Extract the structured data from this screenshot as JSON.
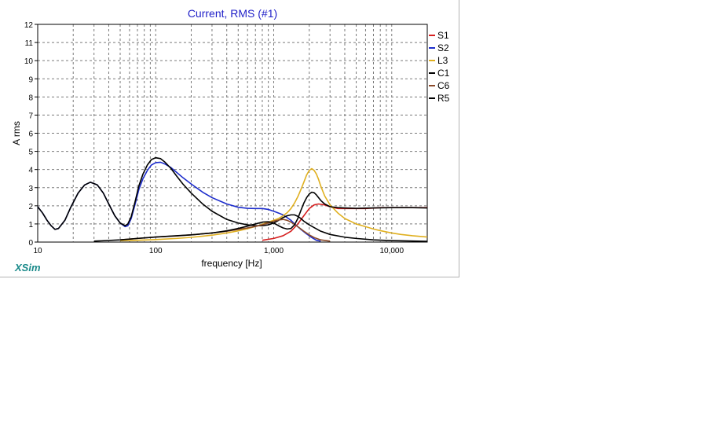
{
  "app": {
    "brand": "XSim"
  },
  "colors": {
    "title": "#1f1fc8",
    "brand": "#1a8a8a",
    "grid": "#7a7a7a"
  },
  "chart_data": {
    "type": "line",
    "title": "Current, RMS (#1)",
    "xlabel": "frequency [Hz]",
    "ylabel": "A rms",
    "xscale": "log",
    "xlim": [
      10,
      20000
    ],
    "ylim": [
      0,
      12
    ],
    "grid": true,
    "legend_position": "right",
    "x_ticks": [
      {
        "value": 10,
        "label": "10"
      },
      {
        "value": 100,
        "label": "100"
      },
      {
        "value": 1000,
        "label": "1,000"
      },
      {
        "value": 10000,
        "label": "10,000"
      }
    ],
    "y_ticks": [
      0,
      1,
      2,
      3,
      4,
      5,
      6,
      7,
      8,
      9,
      10,
      11,
      12
    ],
    "series": [
      {
        "name": "S1",
        "color": "#d62020",
        "x": [
          800,
          1000,
          1200,
          1400,
          1600,
          1800,
          2000,
          2200,
          2400,
          2700,
          3000,
          3500,
          4000,
          5000,
          6000,
          8000,
          10000,
          15000,
          20000
        ],
        "y": [
          0.1,
          0.2,
          0.35,
          0.6,
          1.0,
          1.45,
          1.85,
          2.05,
          2.1,
          2.05,
          1.95,
          1.85,
          1.85,
          1.85,
          1.85,
          1.9,
          1.9,
          1.9,
          1.9
        ]
      },
      {
        "name": "S2",
        "color": "#1c2ccc",
        "x": [
          10,
          11,
          12,
          13,
          14,
          15,
          17,
          19,
          22,
          25,
          28,
          32,
          36,
          40,
          45,
          50,
          55,
          58,
          62,
          67,
          72,
          78,
          85,
          92,
          100,
          110,
          120,
          135,
          150,
          170,
          200,
          250,
          300,
          400,
          500,
          600,
          700,
          800,
          900,
          1000,
          1100,
          1200,
          1300,
          1400,
          1500,
          1700,
          1900,
          2100,
          2300,
          2500
        ],
        "y": [
          1.95,
          1.6,
          1.2,
          0.9,
          0.7,
          0.75,
          1.2,
          1.9,
          2.7,
          3.15,
          3.3,
          3.15,
          2.7,
          2.1,
          1.45,
          1.05,
          0.85,
          0.9,
          1.3,
          2.1,
          2.9,
          3.5,
          3.95,
          4.25,
          4.38,
          4.4,
          4.3,
          4.1,
          3.85,
          3.55,
          3.2,
          2.75,
          2.45,
          2.1,
          1.92,
          1.86,
          1.85,
          1.85,
          1.8,
          1.7,
          1.6,
          1.5,
          1.35,
          1.2,
          1.0,
          0.7,
          0.45,
          0.25,
          0.1,
          0.05
        ]
      },
      {
        "name": "L3",
        "color": "#e0b020",
        "x": [
          50,
          70,
          100,
          150,
          200,
          300,
          400,
          500,
          600,
          700,
          800,
          900,
          1000,
          1100,
          1200,
          1300,
          1400,
          1500,
          1600,
          1700,
          1800,
          1900,
          2000,
          2100,
          2200,
          2300,
          2400,
          2500,
          2700,
          3000,
          3500,
          4000,
          5000,
          6000,
          7000,
          8000,
          10000,
          12000,
          15000,
          20000
        ],
        "y": [
          0.08,
          0.1,
          0.14,
          0.2,
          0.26,
          0.38,
          0.5,
          0.62,
          0.74,
          0.86,
          0.98,
          1.1,
          1.2,
          1.3,
          1.45,
          1.62,
          1.85,
          2.15,
          2.5,
          2.9,
          3.3,
          3.7,
          3.95,
          4.05,
          3.95,
          3.75,
          3.45,
          3.1,
          2.55,
          2.05,
          1.6,
          1.3,
          1.0,
          0.85,
          0.72,
          0.63,
          0.5,
          0.42,
          0.35,
          0.28
        ]
      },
      {
        "name": "C1",
        "color": "#000000",
        "x": [
          10,
          11,
          12,
          13,
          14,
          15,
          17,
          19,
          22,
          25,
          28,
          32,
          36,
          40,
          45,
          50,
          55,
          58,
          62,
          67,
          72,
          78,
          85,
          92,
          100,
          110,
          120,
          135,
          150,
          170,
          200,
          250,
          300,
          400,
          500,
          600,
          700,
          800,
          900,
          1000,
          1100,
          1200,
          1300,
          1400,
          1500,
          1600,
          1700,
          1800,
          2000,
          2200,
          2500,
          3000,
          4000,
          5000,
          7000,
          10000,
          20000
        ],
        "y": [
          1.95,
          1.6,
          1.2,
          0.9,
          0.7,
          0.75,
          1.2,
          1.9,
          2.7,
          3.15,
          3.3,
          3.15,
          2.7,
          2.1,
          1.45,
          1.05,
          0.9,
          1.0,
          1.4,
          2.25,
          3.1,
          3.75,
          4.25,
          4.55,
          4.65,
          4.6,
          4.4,
          4.05,
          3.65,
          3.2,
          2.7,
          2.1,
          1.7,
          1.25,
          1.05,
          0.95,
          0.9,
          0.9,
          0.95,
          1.05,
          1.2,
          1.35,
          1.45,
          1.5,
          1.5,
          1.42,
          1.3,
          1.15,
          0.95,
          0.8,
          0.6,
          0.42,
          0.27,
          0.2,
          0.12,
          0.08,
          0.04
        ]
      },
      {
        "name": "C6",
        "color": "#8a4a2a",
        "x": [
          50,
          70,
          100,
          150,
          200,
          300,
          400,
          500,
          600,
          700,
          800,
          900,
          1000,
          1100,
          1200,
          1300,
          1400,
          1600,
          1800,
          2000,
          2200,
          2500,
          3000
        ],
        "y": [
          0.12,
          0.2,
          0.28,
          0.34,
          0.4,
          0.5,
          0.6,
          0.7,
          0.78,
          0.86,
          0.95,
          1.05,
          1.15,
          1.22,
          1.25,
          1.2,
          1.1,
          0.85,
          0.6,
          0.4,
          0.25,
          0.12,
          0.05
        ]
      },
      {
        "name": "R5",
        "color": "#000000",
        "x": [
          30,
          50,
          70,
          100,
          150,
          200,
          300,
          400,
          500,
          600,
          700,
          800,
          900,
          1000,
          1100,
          1200,
          1300,
          1400,
          1500,
          1600,
          1700,
          1800,
          1900,
          2000,
          2100,
          2200,
          2300,
          2400,
          2500,
          2700,
          3000,
          3500,
          4000,
          5000,
          7000,
          10000,
          15000,
          20000
        ],
        "y": [
          0.05,
          0.12,
          0.2,
          0.28,
          0.35,
          0.4,
          0.5,
          0.62,
          0.75,
          0.88,
          1.0,
          1.1,
          1.12,
          1.05,
          0.9,
          0.78,
          0.72,
          0.75,
          0.95,
          1.3,
          1.75,
          2.15,
          2.45,
          2.65,
          2.75,
          2.72,
          2.6,
          2.45,
          2.3,
          2.1,
          1.95,
          1.9,
          1.88,
          1.86,
          1.88,
          1.9,
          1.9,
          1.88
        ]
      }
    ]
  }
}
